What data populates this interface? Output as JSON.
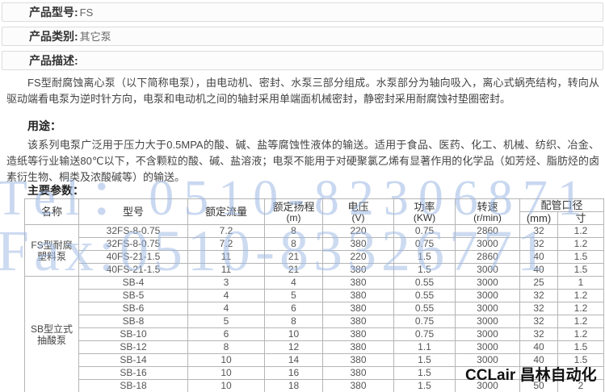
{
  "header_bars": [
    {
      "label": "产品型号:",
      "value": "FS"
    },
    {
      "label": "产品类别:",
      "value": "其它泵"
    },
    {
      "label": "产品描述:",
      "value": ""
    }
  ],
  "description_text": "FS型耐腐蚀离心泵（以下简称电泵），由电动机、密封、水泵三部分组成。水泵部分为轴向吸入，离心式蜗壳结构，转向从驱动端看电泵为逆时针方向，电泵和电动机之间的轴封采用单端面机械密封，静密封采用耐腐蚀衬垫圈密封。",
  "usage_heading": "用途：",
  "usage_text": "该系列电泵广泛用于压力大于0.5MPA的酸、碱、盐等腐蚀性液体的输送。适用于食品、医药、化工、机械、纺织、冶金、造纸等行业输送80℃以下，不含颗粒的酸、碱、盐溶液；电泵不能用于对硬聚氯乙烯有显著作用的化学品（如芳烃、脂肪烃的卤素衍生物、桐类及浓酸碱等）的输送。",
  "params_heading": "主要参数：",
  "table": {
    "headers": {
      "name": "名称",
      "model": "型号",
      "flow": "额定流量",
      "head": "额定扬程",
      "head_unit": "(m)",
      "voltage": "电压",
      "voltage_unit": "(V)",
      "power": "功率",
      "power_unit": "(KW)",
      "speed": "转速",
      "speed_unit": "(r/min)",
      "pipe": "配管口径",
      "pipe_mm": "(mm)",
      "pipe_inch": "寸"
    },
    "groups": [
      {
        "name": "FS型耐腐塑料泵",
        "rows": [
          [
            "32FS-8-0.75",
            "7.2",
            "8",
            "220",
            "0.75",
            "2860",
            "32",
            "1.2"
          ],
          [
            "32FS-8-0.75",
            "7.2",
            "8",
            "380",
            "0.75",
            "3000",
            "32",
            "1.2"
          ],
          [
            "40FS-21-1.5",
            "11",
            "21",
            "220",
            "1.5",
            "2860",
            "40",
            "1.5"
          ],
          [
            "40FS-21-1.5",
            "11",
            "21",
            "380",
            "1.5",
            "3000",
            "40",
            "1.5"
          ]
        ]
      },
      {
        "name": "SB型立式抽酸泵",
        "rows": [
          [
            "SB-4",
            "3",
            "4",
            "380",
            "0.55",
            "3000",
            "25",
            "1"
          ],
          [
            "SB-5",
            "4",
            "5",
            "380",
            "0.55",
            "3000",
            "32",
            "1.2"
          ],
          [
            "SB-6",
            "4",
            "6",
            "380",
            "0.55",
            "3000",
            "32",
            "1.2"
          ],
          [
            "SB-8",
            "5",
            "8",
            "380",
            "0.75",
            "3000",
            "32",
            "1.2"
          ],
          [
            "SB-10",
            "6",
            "10",
            "380",
            "0.75",
            "3000",
            "32",
            "1.2"
          ],
          [
            "SB-12",
            "8",
            "12",
            "380",
            "1.1",
            "3000",
            "40",
            "1.5"
          ],
          [
            "SB-14",
            "10",
            "14",
            "380",
            "1.5",
            "3000",
            "40",
            "1.5"
          ],
          [
            "SB-16",
            "10",
            "16",
            "380",
            "1.5",
            "",
            "",
            ""
          ],
          [
            "SB-18",
            "10",
            "18",
            "380",
            "1.5",
            "3000",
            "50",
            "2"
          ]
        ]
      }
    ]
  },
  "watermarks": {
    "tel": "Tel：0510-82306871",
    "fax": "Fax:0510-83326771",
    "brand": "CCLair 昌林自动化",
    "blue_color": "#9db9e4"
  }
}
